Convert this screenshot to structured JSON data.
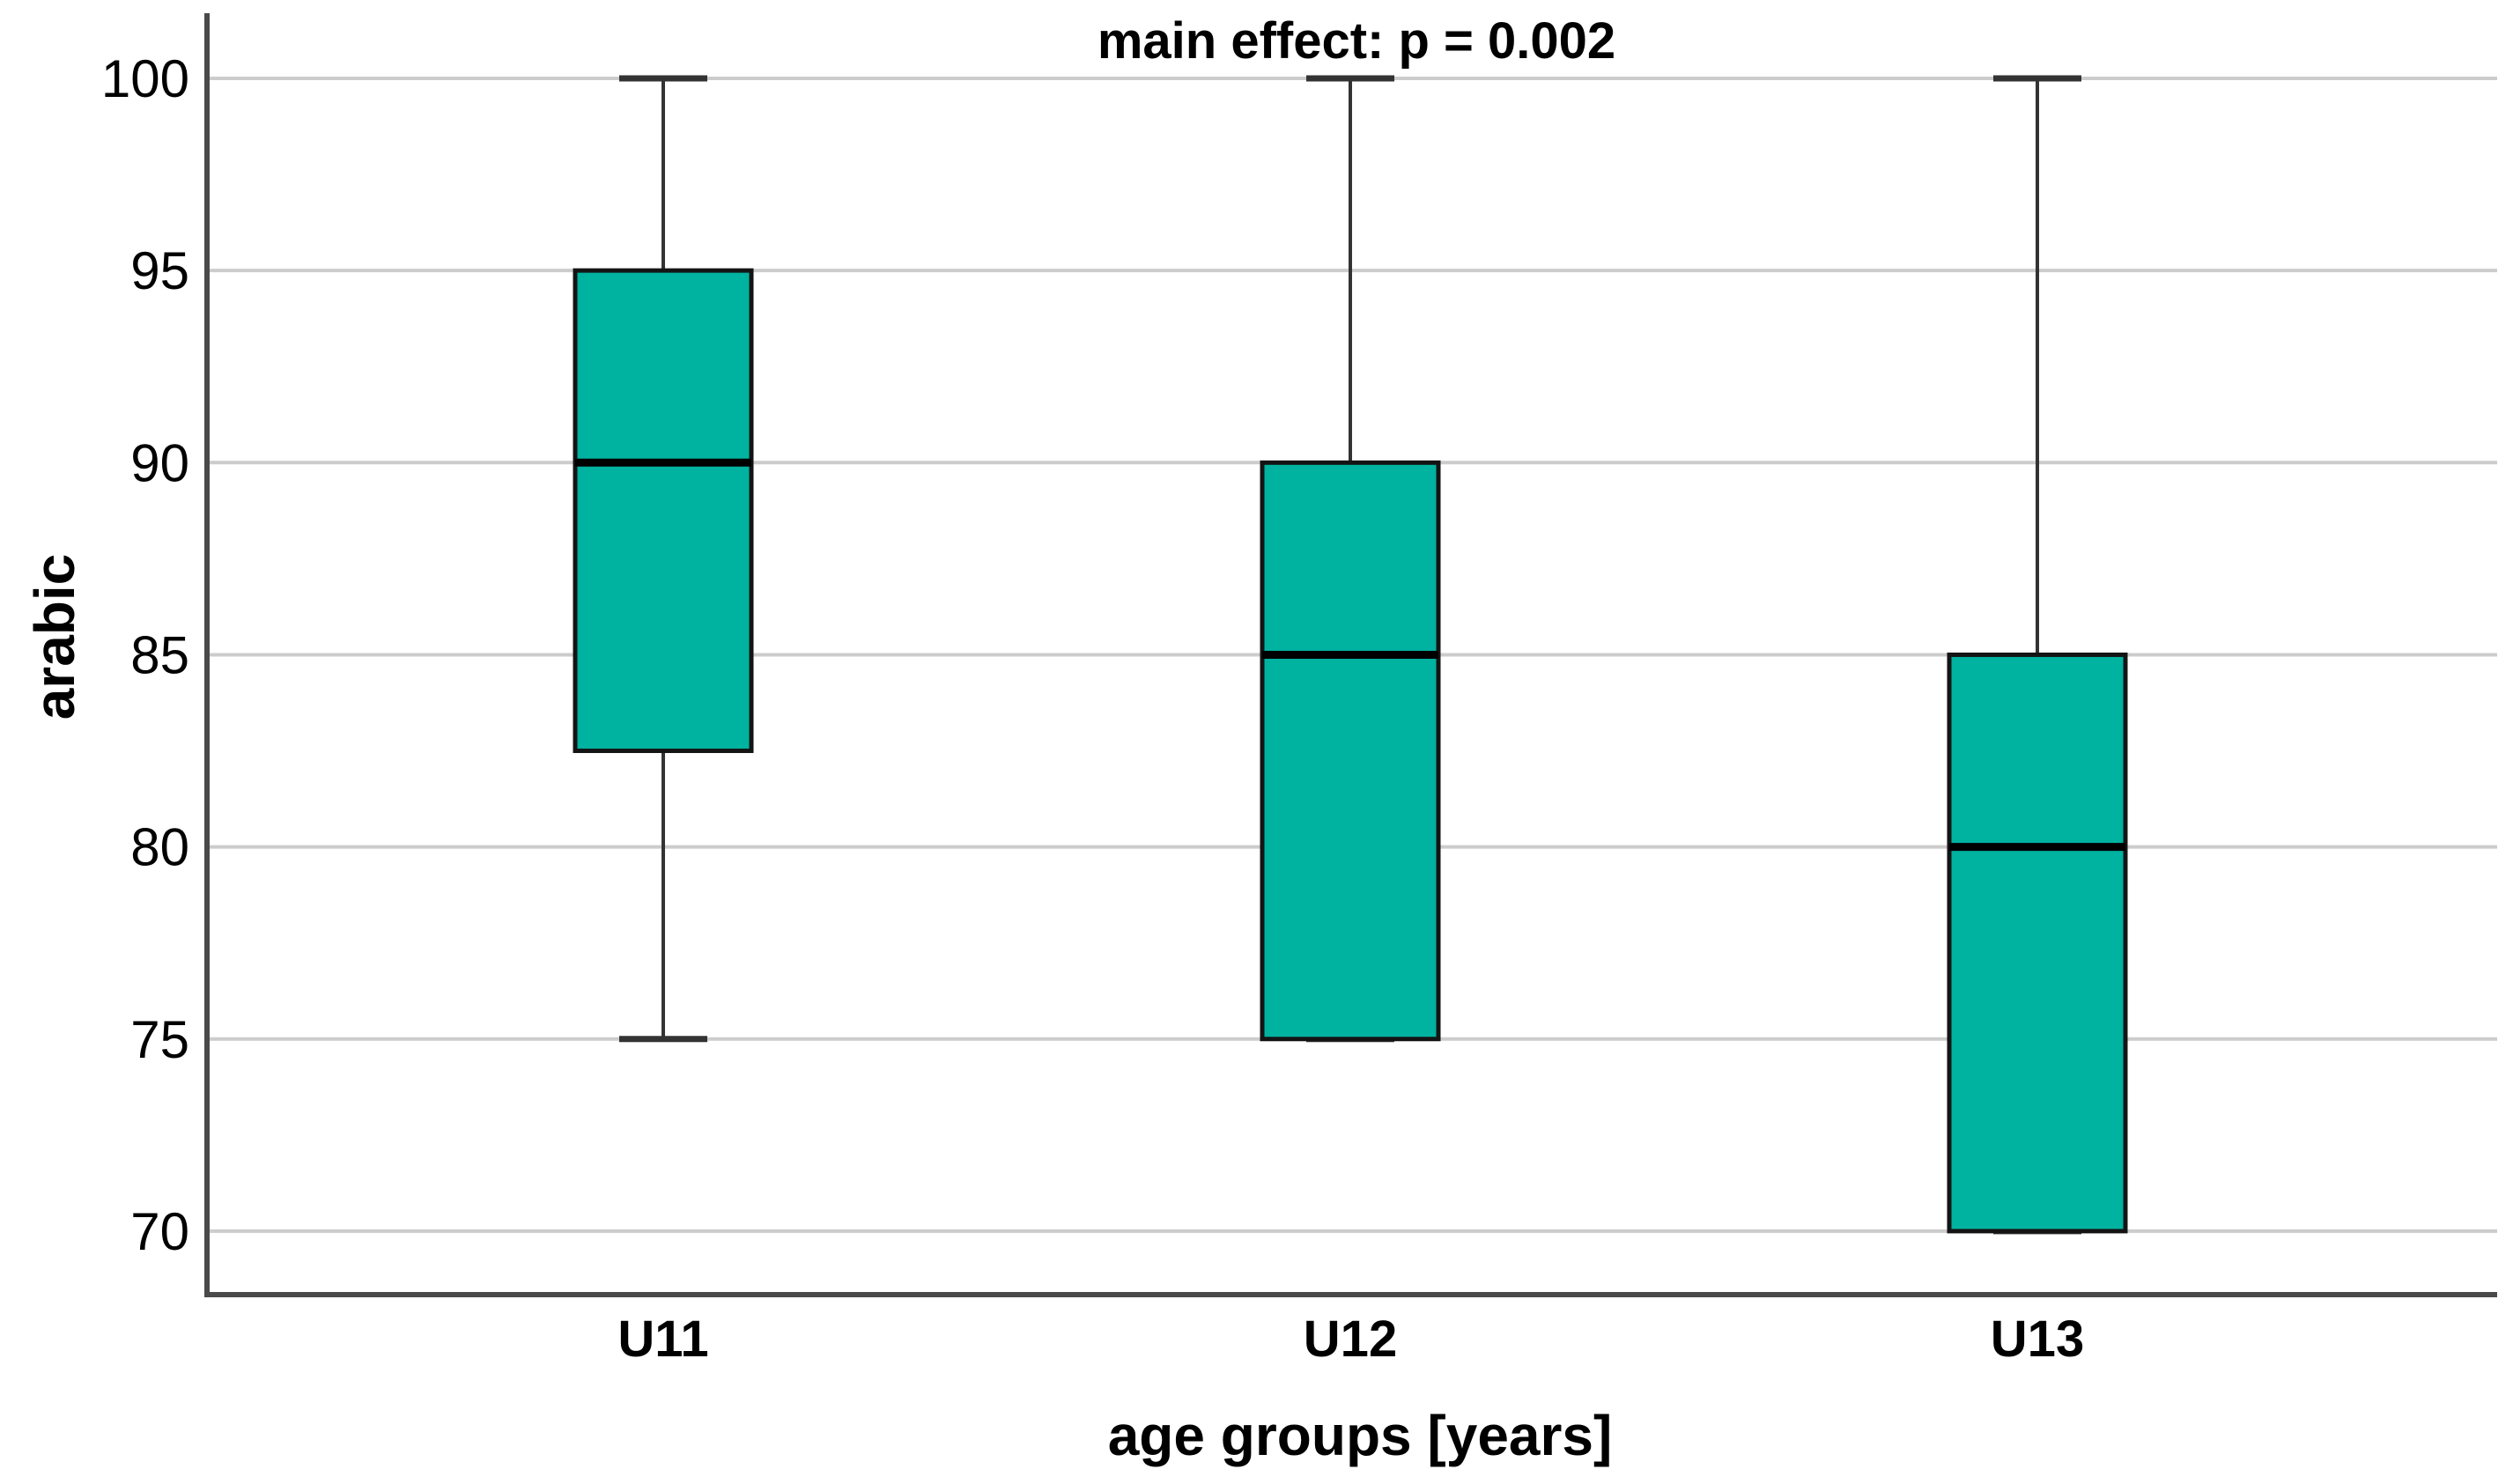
{
  "chart_data": {
    "type": "box",
    "title": "main effect: p = 0.002",
    "xlabel": "age groups [years]",
    "ylabel": "arabic",
    "categories": [
      "U11",
      "U12",
      "U13"
    ],
    "yticks": [
      70,
      75,
      80,
      85,
      90,
      95,
      100
    ],
    "ylim": [
      70,
      100
    ],
    "grid": true,
    "legend_position": "none",
    "series": [
      {
        "name": "U11",
        "min": 75,
        "q1": 82.5,
        "median": 90,
        "q3": 95,
        "max": 100
      },
      {
        "name": "U12",
        "min": 75,
        "q1": 75,
        "median": 85,
        "q3": 90,
        "max": 100
      },
      {
        "name": "U13",
        "min": 70,
        "q1": 70,
        "median": 80,
        "q3": 85,
        "max": 100
      }
    ],
    "colors": {
      "box_fill": "#00B2A0",
      "box_border": "#141414",
      "median": "#000000",
      "whisker": "#333333",
      "grid": "#cccccc",
      "axis": "#4a4a4a",
      "text": "#000000",
      "background": "#ffffff"
    }
  }
}
